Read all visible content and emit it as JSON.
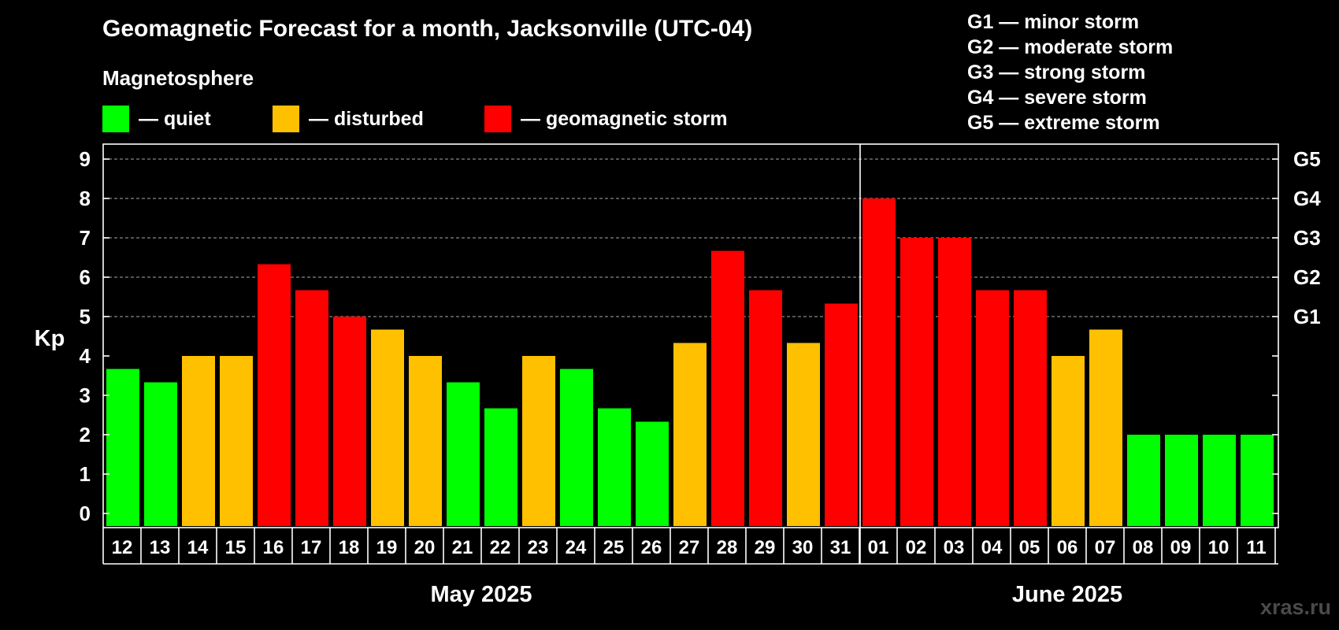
{
  "title": "Geomagnetic Forecast for a month, Jacksonville (UTC-04)",
  "legend": {
    "heading": "Magnetosphere",
    "items": [
      {
        "label": "— quiet",
        "color": "#00ff00"
      },
      {
        "label": "— disturbed",
        "color": "#ffc000"
      },
      {
        "label": "— geomagnetic storm",
        "color": "#ff0000"
      }
    ]
  },
  "storm_levels": [
    "G1 — minor storm",
    "G2 — moderate storm",
    "G3 — strong storm",
    "G4 — severe storm",
    "G5 — extreme storm"
  ],
  "watermark": "xras.ru",
  "chart_data": {
    "type": "bar",
    "ylabel": "Kp",
    "ylim": [
      0,
      9
    ],
    "yticks": [
      "0",
      "1",
      "2",
      "3",
      "4",
      "5",
      "6",
      "7",
      "8",
      "9"
    ],
    "right_axis_labels": [
      {
        "kp": 5,
        "label": "G1"
      },
      {
        "kp": 6,
        "label": "G2"
      },
      {
        "kp": 7,
        "label": "G3"
      },
      {
        "kp": 8,
        "label": "G4"
      },
      {
        "kp": 9,
        "label": "G5"
      }
    ],
    "grid": "dashed horizontal at Kp 5–9",
    "categories": [
      "12",
      "13",
      "14",
      "15",
      "16",
      "17",
      "18",
      "19",
      "20",
      "21",
      "22",
      "23",
      "24",
      "25",
      "26",
      "27",
      "28",
      "29",
      "30",
      "31",
      "01",
      "02",
      "03",
      "04",
      "05",
      "06",
      "07",
      "08",
      "09",
      "10",
      "11"
    ],
    "values": [
      3.67,
      3.33,
      4,
      4,
      6.33,
      5.67,
      5,
      4.67,
      4,
      3.33,
      2.67,
      4,
      3.67,
      2.67,
      2.33,
      4.33,
      6.67,
      5.67,
      4.33,
      5.33,
      8,
      7,
      7,
      5.67,
      5.67,
      4,
      4.67,
      2,
      2,
      2,
      2
    ],
    "status": [
      "quiet",
      "quiet",
      "disturbed",
      "disturbed",
      "storm",
      "storm",
      "storm",
      "disturbed",
      "disturbed",
      "quiet",
      "quiet",
      "disturbed",
      "quiet",
      "quiet",
      "quiet",
      "disturbed",
      "storm",
      "storm",
      "disturbed",
      "storm",
      "storm",
      "storm",
      "storm",
      "storm",
      "storm",
      "disturbed",
      "disturbed",
      "quiet",
      "quiet",
      "quiet",
      "quiet"
    ],
    "status_colors": {
      "quiet": "#00ff00",
      "disturbed": "#ffc000",
      "storm": "#ff0000"
    },
    "months": [
      {
        "label": "May 2025",
        "first_index": 0,
        "last_index": 19
      },
      {
        "label": "June 2025",
        "first_index": 20,
        "last_index": 30
      }
    ]
  }
}
